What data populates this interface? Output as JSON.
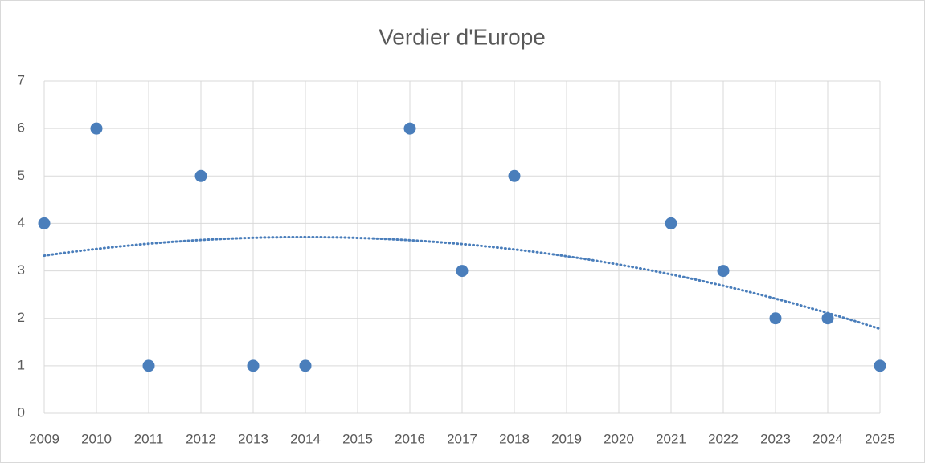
{
  "chart_data": {
    "type": "scatter",
    "title": "Verdier d'Europe",
    "x": [
      2009,
      2010,
      2011,
      2012,
      2013,
      2014,
      2016,
      2017,
      2018,
      2021,
      2022,
      2023,
      2024,
      2025
    ],
    "values": [
      4,
      6,
      1,
      5,
      1,
      1,
      6,
      3,
      5,
      4,
      3,
      2,
      2,
      1
    ],
    "color": "#4a7ebb",
    "xlim": [
      2009,
      2025
    ],
    "xticks": [
      2009,
      2010,
      2011,
      2012,
      2013,
      2014,
      2015,
      2016,
      2017,
      2018,
      2019,
      2020,
      2021,
      2022,
      2023,
      2024,
      2025
    ],
    "ylim": [
      0,
      7
    ],
    "yticks": [
      0,
      1,
      2,
      3,
      4,
      5,
      6,
      7
    ],
    "grid": true,
    "trendline": {
      "type": "polynomial",
      "order": 2,
      "style": "dotted"
    }
  }
}
